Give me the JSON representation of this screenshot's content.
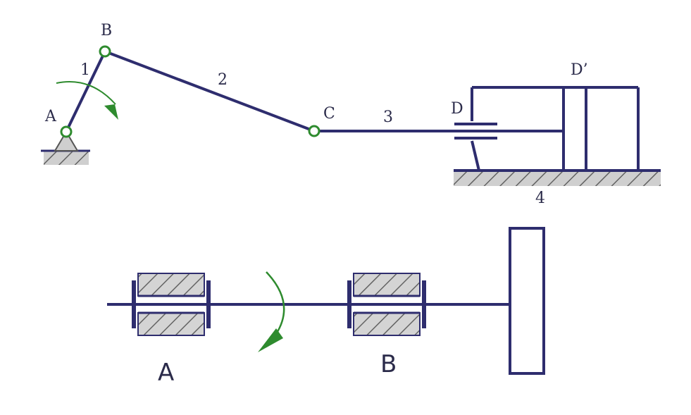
{
  "colors": {
    "link": "#2e2d6e",
    "joint": "#2e8b2e",
    "arrow": "#2e8b2e",
    "ground_fill": "#cfcfcf",
    "bearing_fill": "#d4d4d4"
  },
  "mechanism": {
    "joints": {
      "A": "A",
      "B": "B",
      "C": "C",
      "D": "D",
      "D_prime": "D’"
    },
    "links": {
      "l1": "1",
      "l2": "2",
      "l3": "3",
      "l4": "4"
    }
  },
  "shaft": {
    "bearings": {
      "A": "A",
      "B": "B"
    }
  }
}
